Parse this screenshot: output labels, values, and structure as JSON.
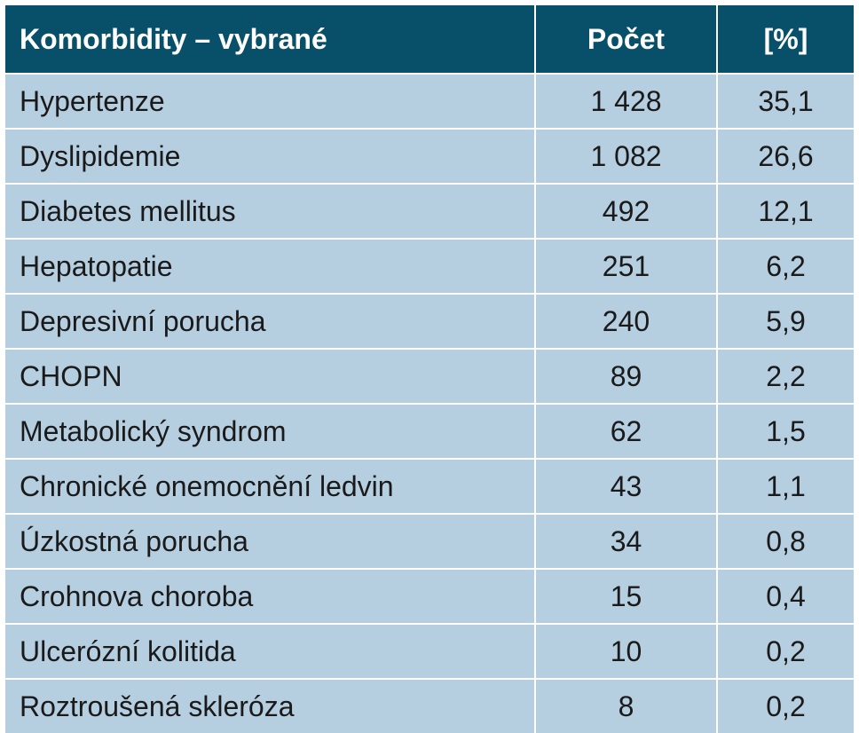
{
  "table": {
    "headers": [
      "Komorbidity – vybrané",
      "Počet",
      "[%]"
    ],
    "rows": [
      [
        "Hypertenze",
        "1 428",
        "35,1"
      ],
      [
        "Dyslipidemie",
        "1 082",
        "26,6"
      ],
      [
        "Diabetes mellitus",
        "492",
        "12,1"
      ],
      [
        "Hepatopatie",
        "251",
        "6,2"
      ],
      [
        "Depresivní porucha",
        "240",
        "5,9"
      ],
      [
        "CHOPN",
        "89",
        "2,2"
      ],
      [
        "Metabolický syndrom",
        "62",
        "1,5"
      ],
      [
        "Chronické onemocnění ledvin",
        "43",
        "1,1"
      ],
      [
        "Úzkostná porucha",
        "34",
        "0,8"
      ],
      [
        "Crohnova choroba",
        "15",
        "0,4"
      ],
      [
        "Ulcerózní kolitida",
        "10",
        "0,2"
      ],
      [
        "Roztroušená skleróza",
        "8",
        "0,2"
      ]
    ]
  },
  "colors": {
    "header_bg": "#08506a",
    "header_text": "#ffffff",
    "row_bg": "#b5cee0",
    "cell_text": "#1a1a1a",
    "grid": "#ffffff"
  }
}
